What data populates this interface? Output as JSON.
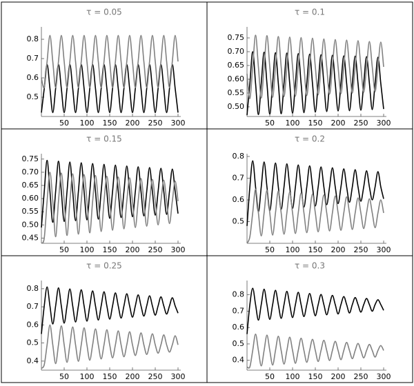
{
  "chart_data": [
    {
      "type": "line",
      "title": "τ = 0.05",
      "x": [
        0,
        6.25,
        12.5,
        18.75,
        25,
        31.25,
        37.5,
        43.75,
        50,
        56.25,
        62.5,
        68.75,
        75,
        81.25,
        87.5,
        93.75,
        100,
        106.25,
        112.5,
        118.75,
        125,
        131.25,
        137.5,
        143.75,
        150,
        156.25,
        162.5,
        168.75,
        175,
        181.25,
        187.5,
        193.75,
        200,
        206.25,
        212.5,
        218.75,
        225,
        231.25,
        237.5,
        243.75,
        250,
        256.25,
        262.5,
        268.75,
        275,
        281.25,
        287.5,
        293.75,
        300
      ],
      "series": [
        {
          "color": "#000000",
          "values": [
            0.42,
            0.545,
            0.67,
            0.545,
            0.42,
            0.545,
            0.67,
            0.545,
            0.42,
            0.545,
            0.67,
            0.545,
            0.42,
            0.545,
            0.67,
            0.545,
            0.42,
            0.545,
            0.67,
            0.545,
            0.42,
            0.545,
            0.67,
            0.545,
            0.42,
            0.545,
            0.67,
            0.545,
            0.42,
            0.545,
            0.67,
            0.545,
            0.42,
            0.545,
            0.67,
            0.545,
            0.42,
            0.545,
            0.67,
            0.545,
            0.42,
            0.545,
            0.67,
            0.545,
            0.42,
            0.545,
            0.67,
            0.545,
            0.42
          ]
        },
        {
          "color": "#808080",
          "values": [
            0.6,
            0.55,
            0.685,
            0.82,
            0.685,
            0.55,
            0.685,
            0.82,
            0.685,
            0.55,
            0.685,
            0.82,
            0.685,
            0.55,
            0.685,
            0.82,
            0.685,
            0.55,
            0.685,
            0.82,
            0.685,
            0.55,
            0.685,
            0.82,
            0.685,
            0.55,
            0.685,
            0.82,
            0.685,
            0.55,
            0.685,
            0.82,
            0.685,
            0.55,
            0.685,
            0.82,
            0.685,
            0.55,
            0.685,
            0.82,
            0.685,
            0.55,
            0.685,
            0.82,
            0.685,
            0.55,
            0.685,
            0.82,
            0.685
          ]
        }
      ],
      "xlim": [
        0,
        300
      ],
      "ylim": [
        0.4,
        0.85
      ],
      "xticks": [
        50,
        100,
        150,
        200,
        250,
        300
      ],
      "yticks": [
        0.5,
        0.6,
        0.7,
        0.8
      ]
    },
    {
      "type": "line",
      "title": "τ = 0.1",
      "x": [
        0,
        6.25,
        12.5,
        18.75,
        25,
        31.25,
        37.5,
        43.75,
        50,
        56.25,
        62.5,
        68.75,
        75,
        81.25,
        87.5,
        93.75,
        100,
        106.25,
        112.5,
        118.75,
        125,
        131.25,
        137.5,
        143.75,
        150,
        156.25,
        162.5,
        168.75,
        175,
        181.25,
        187.5,
        193.75,
        200,
        206.25,
        212.5,
        218.75,
        225,
        231.25,
        237.5,
        243.75,
        250,
        256.25,
        262.5,
        268.75,
        275,
        281.25,
        287.5,
        293.75,
        300
      ],
      "series": [
        {
          "color": "#000000",
          "values": [
            0.47,
            0.585,
            0.7,
            0.585,
            0.472,
            0.585,
            0.698,
            0.585,
            0.474,
            0.585,
            0.696,
            0.585,
            0.475,
            0.585,
            0.695,
            0.585,
            0.477,
            0.585,
            0.693,
            0.585,
            0.479,
            0.585,
            0.691,
            0.585,
            0.481,
            0.585,
            0.689,
            0.585,
            0.483,
            0.585,
            0.687,
            0.585,
            0.485,
            0.585,
            0.685,
            0.585,
            0.486,
            0.585,
            0.684,
            0.585,
            0.488,
            0.585,
            0.682,
            0.585,
            0.49,
            0.585,
            0.68,
            0.585,
            0.492
          ]
        },
        {
          "color": "#808080",
          "values": [
            0.62,
            0.53,
            0.645,
            0.76,
            0.645,
            0.532,
            0.645,
            0.758,
            0.645,
            0.535,
            0.645,
            0.755,
            0.645,
            0.537,
            0.645,
            0.753,
            0.645,
            0.539,
            0.645,
            0.751,
            0.645,
            0.541,
            0.645,
            0.749,
            0.645,
            0.544,
            0.645,
            0.746,
            0.645,
            0.546,
            0.645,
            0.744,
            0.645,
            0.548,
            0.645,
            0.742,
            0.645,
            0.55,
            0.645,
            0.74,
            0.645,
            0.553,
            0.645,
            0.737,
            0.645,
            0.555,
            0.645,
            0.735,
            0.645
          ]
        }
      ],
      "xlim": [
        0,
        300
      ],
      "ylim": [
        0.465,
        0.78
      ],
      "xticks": [
        50,
        100,
        150,
        200,
        250,
        300
      ],
      "yticks": [
        {
          "value": 0.5,
          "label": "0.50"
        },
        0.55,
        {
          "value": 0.6,
          "label": "0.60"
        },
        0.65,
        {
          "value": 0.7,
          "label": "0.70"
        },
        0.75
      ]
    },
    {
      "type": "line",
      "title": "τ = 0.15",
      "x": [
        0,
        6.25,
        12.5,
        18.75,
        25,
        31.25,
        37.5,
        43.75,
        50,
        56.25,
        62.5,
        68.75,
        75,
        81.25,
        87.5,
        93.75,
        100,
        106.25,
        112.5,
        118.75,
        125,
        131.25,
        137.5,
        143.75,
        150,
        156.25,
        162.5,
        168.75,
        175,
        181.25,
        187.5,
        193.75,
        200,
        206.25,
        212.5,
        218.75,
        225,
        231.25,
        237.5,
        243.75,
        250,
        256.25,
        262.5,
        268.75,
        275,
        281.25,
        287.5,
        293.75,
        300
      ],
      "series": [
        {
          "color": "#000000",
          "values": [
            0.49,
            0.627,
            0.745,
            0.627,
            0.51,
            0.627,
            0.742,
            0.627,
            0.513,
            0.627,
            0.739,
            0.627,
            0.516,
            0.627,
            0.736,
            0.627,
            0.519,
            0.627,
            0.733,
            0.627,
            0.522,
            0.627,
            0.73,
            0.627,
            0.525,
            0.627,
            0.727,
            0.627,
            0.528,
            0.627,
            0.724,
            0.627,
            0.531,
            0.627,
            0.721,
            0.627,
            0.534,
            0.627,
            0.718,
            0.627,
            0.537,
            0.627,
            0.715,
            0.627,
            0.54,
            0.627,
            0.712,
            0.627,
            0.543
          ]
        },
        {
          "color": "#808080",
          "values": [
            0.43,
            0.45,
            0.59,
            0.7,
            0.59,
            0.455,
            0.59,
            0.697,
            0.59,
            0.46,
            0.59,
            0.694,
            0.59,
            0.465,
            0.59,
            0.691,
            0.59,
            0.47,
            0.59,
            0.688,
            0.59,
            0.475,
            0.59,
            0.685,
            0.59,
            0.48,
            0.59,
            0.682,
            0.59,
            0.485,
            0.59,
            0.679,
            0.59,
            0.49,
            0.59,
            0.676,
            0.59,
            0.495,
            0.59,
            0.673,
            0.59,
            0.5,
            0.59,
            0.67,
            0.59,
            0.505,
            0.59,
            0.667,
            0.59
          ]
        }
      ],
      "xlim": [
        0,
        300
      ],
      "ylim": [
        0.43,
        0.76
      ],
      "xticks": [
        50,
        100,
        150,
        200,
        250,
        300
      ],
      "yticks": [
        0.45,
        {
          "value": 0.5,
          "label": "0.50"
        },
        0.55,
        {
          "value": 0.6,
          "label": "0.60"
        },
        0.65,
        {
          "value": 0.7,
          "label": "0.70"
        },
        0.75
      ]
    },
    {
      "type": "line",
      "title": "τ = 0.2",
      "x": [
        0,
        6.25,
        12.5,
        18.75,
        25,
        31.25,
        37.5,
        43.75,
        50,
        56.25,
        62.5,
        68.75,
        75,
        81.25,
        87.5,
        93.75,
        100,
        106.25,
        112.5,
        118.75,
        125,
        131.25,
        137.5,
        143.75,
        150,
        156.25,
        162.5,
        168.75,
        175,
        181.25,
        187.5,
        193.75,
        200,
        206.25,
        212.5,
        218.75,
        225,
        231.25,
        237.5,
        243.75,
        250,
        256.25,
        262.5,
        268.75,
        275,
        281.25,
        287.5,
        293.75,
        300
      ],
      "series": [
        {
          "color": "#000000",
          "values": [
            0.48,
            0.66,
            0.78,
            0.66,
            0.545,
            0.66,
            0.775,
            0.66,
            0.55,
            0.66,
            0.77,
            0.66,
            0.556,
            0.66,
            0.766,
            0.66,
            0.561,
            0.66,
            0.761,
            0.66,
            0.567,
            0.66,
            0.757,
            0.66,
            0.572,
            0.66,
            0.752,
            0.66,
            0.578,
            0.66,
            0.748,
            0.66,
            0.583,
            0.66,
            0.743,
            0.66,
            0.589,
            0.66,
            0.739,
            0.66,
            0.594,
            0.66,
            0.734,
            0.66,
            0.6,
            0.66,
            0.73,
            0.66,
            0.605
          ]
        },
        {
          "color": "#808080",
          "values": [
            0.4,
            0.43,
            0.54,
            0.65,
            0.54,
            0.434,
            0.54,
            0.645,
            0.54,
            0.438,
            0.54,
            0.641,
            0.54,
            0.442,
            0.54,
            0.636,
            0.54,
            0.445,
            0.54,
            0.632,
            0.54,
            0.449,
            0.54,
            0.627,
            0.54,
            0.453,
            0.54,
            0.623,
            0.54,
            0.457,
            0.54,
            0.618,
            0.54,
            0.46,
            0.54,
            0.614,
            0.54,
            0.464,
            0.54,
            0.609,
            0.54,
            0.468,
            0.54,
            0.605,
            0.54,
            0.472,
            0.54,
            0.6,
            0.54
          ]
        }
      ],
      "xlim": [
        0,
        300
      ],
      "ylim": [
        0.4,
        0.8
      ],
      "xticks": [
        50,
        100,
        150,
        200,
        250,
        300
      ],
      "yticks": [
        0.5,
        0.6,
        0.7,
        0.8
      ]
    },
    {
      "type": "line",
      "title": "τ = 0.25",
      "x": [
        0,
        6.25,
        12.5,
        18.75,
        25,
        31.25,
        37.5,
        43.75,
        50,
        56.25,
        62.5,
        68.75,
        75,
        81.25,
        87.5,
        93.75,
        100,
        106.25,
        112.5,
        118.75,
        125,
        131.25,
        137.5,
        143.75,
        150,
        156.25,
        162.5,
        168.75,
        175,
        181.25,
        187.5,
        193.75,
        200,
        206.25,
        212.5,
        218.75,
        225,
        231.25,
        237.5,
        243.75,
        250,
        256.25,
        262.5,
        268.75,
        275,
        281.25,
        287.5,
        293.75,
        300
      ],
      "series": [
        {
          "color": "#000000",
          "values": [
            0.55,
            0.705,
            0.81,
            0.705,
            0.605,
            0.705,
            0.805,
            0.705,
            0.61,
            0.705,
            0.799,
            0.705,
            0.616,
            0.705,
            0.794,
            0.705,
            0.621,
            0.705,
            0.788,
            0.705,
            0.627,
            0.705,
            0.783,
            0.705,
            0.632,
            0.705,
            0.777,
            0.705,
            0.638,
            0.705,
            0.772,
            0.705,
            0.643,
            0.705,
            0.766,
            0.705,
            0.649,
            0.705,
            0.761,
            0.705,
            0.654,
            0.705,
            0.755,
            0.705,
            0.66,
            0.705,
            0.75,
            0.705,
            0.665
          ]
        },
        {
          "color": "#808080",
          "values": [
            0.36,
            0.38,
            0.49,
            0.6,
            0.49,
            0.386,
            0.49,
            0.595,
            0.49,
            0.393,
            0.49,
            0.589,
            0.49,
            0.399,
            0.49,
            0.584,
            0.49,
            0.405,
            0.49,
            0.578,
            0.49,
            0.412,
            0.49,
            0.573,
            0.49,
            0.418,
            0.49,
            0.567,
            0.49,
            0.424,
            0.49,
            0.562,
            0.49,
            0.431,
            0.49,
            0.556,
            0.49,
            0.437,
            0.49,
            0.551,
            0.49,
            0.444,
            0.49,
            0.545,
            0.49,
            0.45,
            0.49,
            0.54,
            0.49
          ]
        }
      ],
      "xlim": [
        0,
        300
      ],
      "ylim": [
        0.35,
        0.83
      ],
      "xticks": [
        50,
        100,
        150,
        200,
        250,
        300
      ],
      "yticks": [
        0.4,
        0.5,
        0.6,
        0.7,
        0.8
      ]
    },
    {
      "type": "line",
      "title": "τ = 0.3",
      "x": [
        0,
        6.25,
        12.5,
        18.75,
        25,
        31.25,
        37.5,
        43.75,
        50,
        56.25,
        62.5,
        68.75,
        75,
        81.25,
        87.5,
        93.75,
        100,
        106.25,
        112.5,
        118.75,
        125,
        131.25,
        137.5,
        143.75,
        150,
        156.25,
        162.5,
        168.75,
        175,
        181.25,
        187.5,
        193.75,
        200,
        206.25,
        212.5,
        218.75,
        225,
        231.25,
        237.5,
        243.75,
        250,
        256.25,
        262.5,
        268.75,
        275,
        281.25,
        287.5,
        293.75,
        300
      ],
      "series": [
        {
          "color": "#000000",
          "values": [
            0.56,
            0.74,
            0.84,
            0.74,
            0.645,
            0.74,
            0.834,
            0.74,
            0.65,
            0.74,
            0.827,
            0.74,
            0.656,
            0.74,
            0.821,
            0.74,
            0.661,
            0.74,
            0.815,
            0.74,
            0.667,
            0.74,
            0.808,
            0.74,
            0.672,
            0.74,
            0.802,
            0.74,
            0.678,
            0.74,
            0.796,
            0.74,
            0.683,
            0.74,
            0.789,
            0.74,
            0.689,
            0.74,
            0.783,
            0.74,
            0.694,
            0.74,
            0.777,
            0.74,
            0.7,
            0.74,
            0.77,
            0.74,
            0.705
          ]
        },
        {
          "color": "#808080",
          "values": [
            0.36,
            0.36,
            0.46,
            0.56,
            0.46,
            0.366,
            0.46,
            0.554,
            0.46,
            0.371,
            0.46,
            0.547,
            0.46,
            0.377,
            0.46,
            0.541,
            0.46,
            0.382,
            0.46,
            0.535,
            0.46,
            0.388,
            0.46,
            0.528,
            0.46,
            0.393,
            0.46,
            0.522,
            0.46,
            0.399,
            0.46,
            0.516,
            0.46,
            0.404,
            0.46,
            0.509,
            0.46,
            0.41,
            0.46,
            0.503,
            0.46,
            0.415,
            0.46,
            0.497,
            0.46,
            0.42,
            0.46,
            0.49,
            0.46
          ]
        }
      ],
      "xlim": [
        0,
        300
      ],
      "ylim": [
        0.34,
        0.87
      ],
      "xticks": [
        50,
        100,
        150,
        200,
        250,
        300
      ],
      "yticks": [
        0.4,
        0.5,
        0.6,
        0.7,
        0.8
      ]
    }
  ]
}
